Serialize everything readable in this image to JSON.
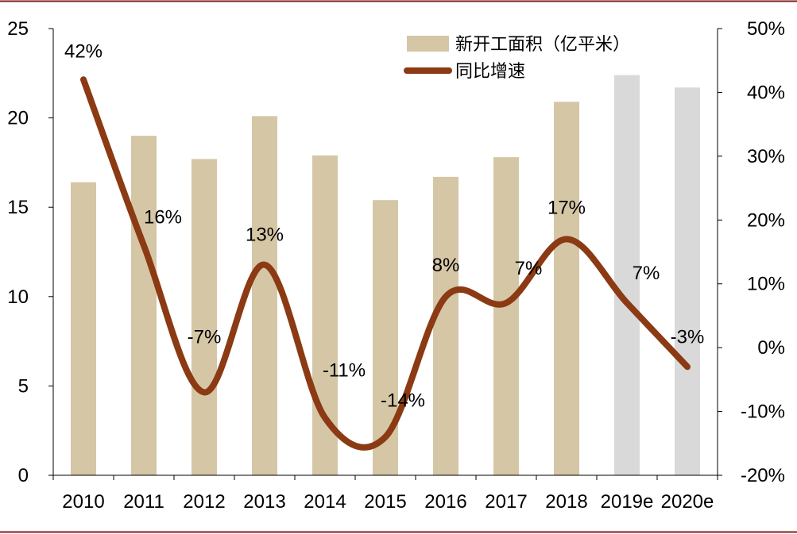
{
  "chart_data": {
    "type": "bar+line",
    "categories": [
      "2010",
      "2011",
      "2012",
      "2013",
      "2014",
      "2015",
      "2016",
      "2017",
      "2018",
      "2019e",
      "2020e"
    ],
    "series": [
      {
        "name": "新开工面积（亿平米）",
        "type": "bar",
        "axis": "left",
        "values": [
          16.4,
          19.0,
          17.7,
          20.1,
          17.9,
          15.4,
          16.7,
          17.8,
          20.9,
          22.4,
          21.7
        ],
        "colors": [
          "#d5c6a6",
          "#d5c6a6",
          "#d5c6a6",
          "#d5c6a6",
          "#d5c6a6",
          "#d5c6a6",
          "#d5c6a6",
          "#d5c6a6",
          "#d5c6a6",
          "#d9d9d9",
          "#d9d9d9"
        ]
      },
      {
        "name": "同比增速",
        "type": "line",
        "axis": "right",
        "smooth": true,
        "color": "#8b3a14",
        "values": [
          42,
          16,
          -7,
          13,
          -11,
          -14,
          8,
          7,
          17,
          7,
          -3
        ],
        "labels": [
          "42%",
          "16%",
          "-7%",
          "13%",
          "-11%",
          "-14%",
          "8%",
          "7%",
          "17%",
          "7%",
          "-3%"
        ]
      }
    ],
    "y_left": {
      "ylim": [
        0,
        25
      ],
      "ticks": [
        "0",
        "5",
        "10",
        "15",
        "20",
        "25"
      ]
    },
    "y_right": {
      "ylim": [
        -20,
        50
      ],
      "ticks": [
        "-20%",
        "-10%",
        "0%",
        "10%",
        "20%",
        "30%",
        "40%",
        "50%"
      ]
    },
    "legend": {
      "placement": "top-right",
      "items": [
        {
          "label": "新开工面积（亿平米）",
          "symbol": "bar",
          "color": "#d5c6a6"
        },
        {
          "label": "同比增速",
          "symbol": "line",
          "color": "#8b3a14"
        }
      ]
    },
    "grid": false,
    "frame_color": "#7f1d1d"
  }
}
